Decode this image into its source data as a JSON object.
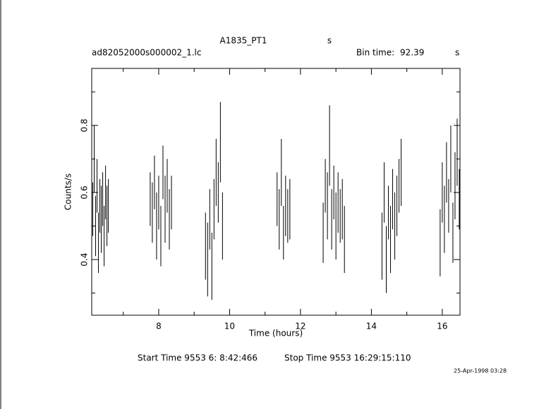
{
  "chart_data": {
    "type": "errorbar",
    "title": "A1835_PT1",
    "title_unit": "s",
    "subtitle": "ad82052000s000002_1.lc",
    "bin_time_label": "Bin time:",
    "bin_time": "92.39",
    "bin_time_unit": "s",
    "ylabel": "Counts/s",
    "xlabel": "Time (hours)",
    "start_time": "Start Time  9553  6: 8:42:466",
    "stop_time": "Stop Time  9553 16:29:15:110",
    "date": "25-Apr-1998 03:28",
    "xlim": [
      6.11,
      16.5
    ],
    "ylim": [
      0.234,
      0.97
    ],
    "xticks": [
      8,
      10,
      12,
      14,
      16
    ],
    "xminorticks": [
      7,
      9,
      11,
      13,
      15
    ],
    "yticks": [
      0.4,
      0.6,
      0.8
    ],
    "yminorticks": [
      0.3,
      0.5,
      0.7,
      0.9
    ],
    "color": "#000000",
    "x": [
      6.14,
      6.18,
      6.22,
      6.26,
      6.3,
      6.34,
      6.38,
      6.42,
      6.46,
      6.5,
      6.54,
      6.58,
      7.76,
      7.82,
      7.88,
      7.94,
      8.0,
      8.06,
      8.12,
      8.18,
      8.24,
      8.3,
      8.36,
      9.32,
      9.38,
      9.44,
      9.5,
      9.56,
      9.62,
      9.68,
      9.74,
      9.8,
      11.34,
      11.4,
      11.46,
      11.52,
      11.58,
      11.64,
      11.7,
      12.64,
      12.7,
      12.76,
      12.82,
      12.88,
      12.94,
      13.0,
      13.06,
      13.12,
      13.18,
      13.24,
      14.3,
      14.36,
      14.42,
      14.48,
      14.54,
      14.6,
      14.66,
      14.72,
      14.78,
      14.84,
      15.94,
      16.0,
      16.06,
      16.12,
      16.18,
      16.24,
      16.3,
      16.36,
      16.42,
      16.48
    ],
    "values": [
      0.55,
      0.7,
      0.5,
      0.62,
      0.45,
      0.56,
      0.52,
      0.58,
      0.47,
      0.6,
      0.53,
      0.56,
      0.58,
      0.54,
      0.63,
      0.5,
      0.57,
      0.47,
      0.66,
      0.55,
      0.62,
      0.52,
      0.57,
      0.44,
      0.4,
      0.52,
      0.38,
      0.55,
      0.66,
      0.6,
      0.75,
      0.5,
      0.58,
      0.52,
      0.66,
      0.48,
      0.56,
      0.53,
      0.55,
      0.48,
      0.62,
      0.56,
      0.74,
      0.52,
      0.6,
      0.5,
      0.57,
      0.53,
      0.55,
      0.46,
      0.44,
      0.6,
      0.4,
      0.54,
      0.46,
      0.58,
      0.5,
      0.56,
      0.62,
      0.66,
      0.45,
      0.6,
      0.52,
      0.66,
      0.56,
      0.7,
      0.48,
      0.62,
      0.72,
      0.58
    ],
    "errors": [
      0.08,
      0.1,
      0.09,
      0.08,
      0.09,
      0.08,
      0.1,
      0.08,
      0.09,
      0.08,
      0.09,
      0.08,
      0.08,
      0.09,
      0.08,
      0.1,
      0.08,
      0.09,
      0.08,
      0.1,
      0.08,
      0.09,
      0.08,
      0.1,
      0.11,
      0.09,
      0.1,
      0.09,
      0.1,
      0.09,
      0.12,
      0.1,
      0.08,
      0.09,
      0.1,
      0.08,
      0.09,
      0.08,
      0.09,
      0.09,
      0.08,
      0.1,
      0.12,
      0.09,
      0.08,
      0.1,
      0.09,
      0.08,
      0.09,
      0.1,
      0.1,
      0.09,
      0.1,
      0.08,
      0.1,
      0.09,
      0.1,
      0.09,
      0.08,
      0.1,
      0.1,
      0.09,
      0.1,
      0.09,
      0.08,
      0.1,
      0.09,
      0.1,
      0.1,
      0.09
    ]
  }
}
